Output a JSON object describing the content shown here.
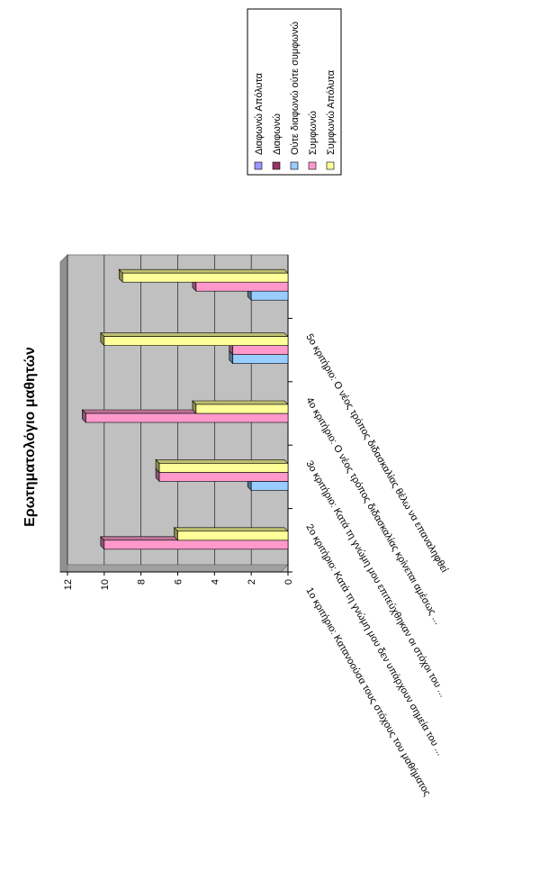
{
  "chart_data": {
    "type": "bar",
    "title": "Ερωτηματολόγιο μαθητών",
    "ylim": [
      0,
      12
    ],
    "yticks": [
      0,
      2,
      4,
      6,
      8,
      10,
      12
    ],
    "categories": [
      "1ο κριτήριο: Κατανοούσα τους στόχους του μαθήματος",
      "2ο κριτήριο: Κατά τη γνώμη μου δεν υπάρχουν σημεία του ...",
      "3ο κριτήριο: Κατά τη γνώμη μου επιτεύχθηκαν οι στόχοι του ...",
      "4ο κριτήριο: Ο νέος τρόπος διδασκαλίας κρίνεται αμέσως ...",
      "5ο κριτήριο: Ο νέος τρόπος διδασκαλίας θέλω να επαναληφθεί"
    ],
    "series": [
      {
        "name": "Διαφωνώ Απόλυτα",
        "color": "#9999ff",
        "values": [
          0,
          0,
          0,
          0,
          0
        ]
      },
      {
        "name": "Διαφωνώ",
        "color": "#993366",
        "values": [
          0,
          0,
          0,
          0,
          0
        ]
      },
      {
        "name": "Ούτε διαφωνώ ούτε συμφωνώ",
        "color": "#99ccff",
        "values": [
          0,
          2,
          0,
          3,
          2
        ]
      },
      {
        "name": "Συμφωνώ",
        "color": "#ff99cc",
        "values": [
          10,
          7,
          11,
          3,
          5
        ]
      },
      {
        "name": "Συμφωνώ Απόλυτα",
        "color": "#ffff99",
        "values": [
          6,
          7,
          5,
          10,
          9
        ]
      }
    ],
    "grid": true,
    "legend": "top-right"
  }
}
